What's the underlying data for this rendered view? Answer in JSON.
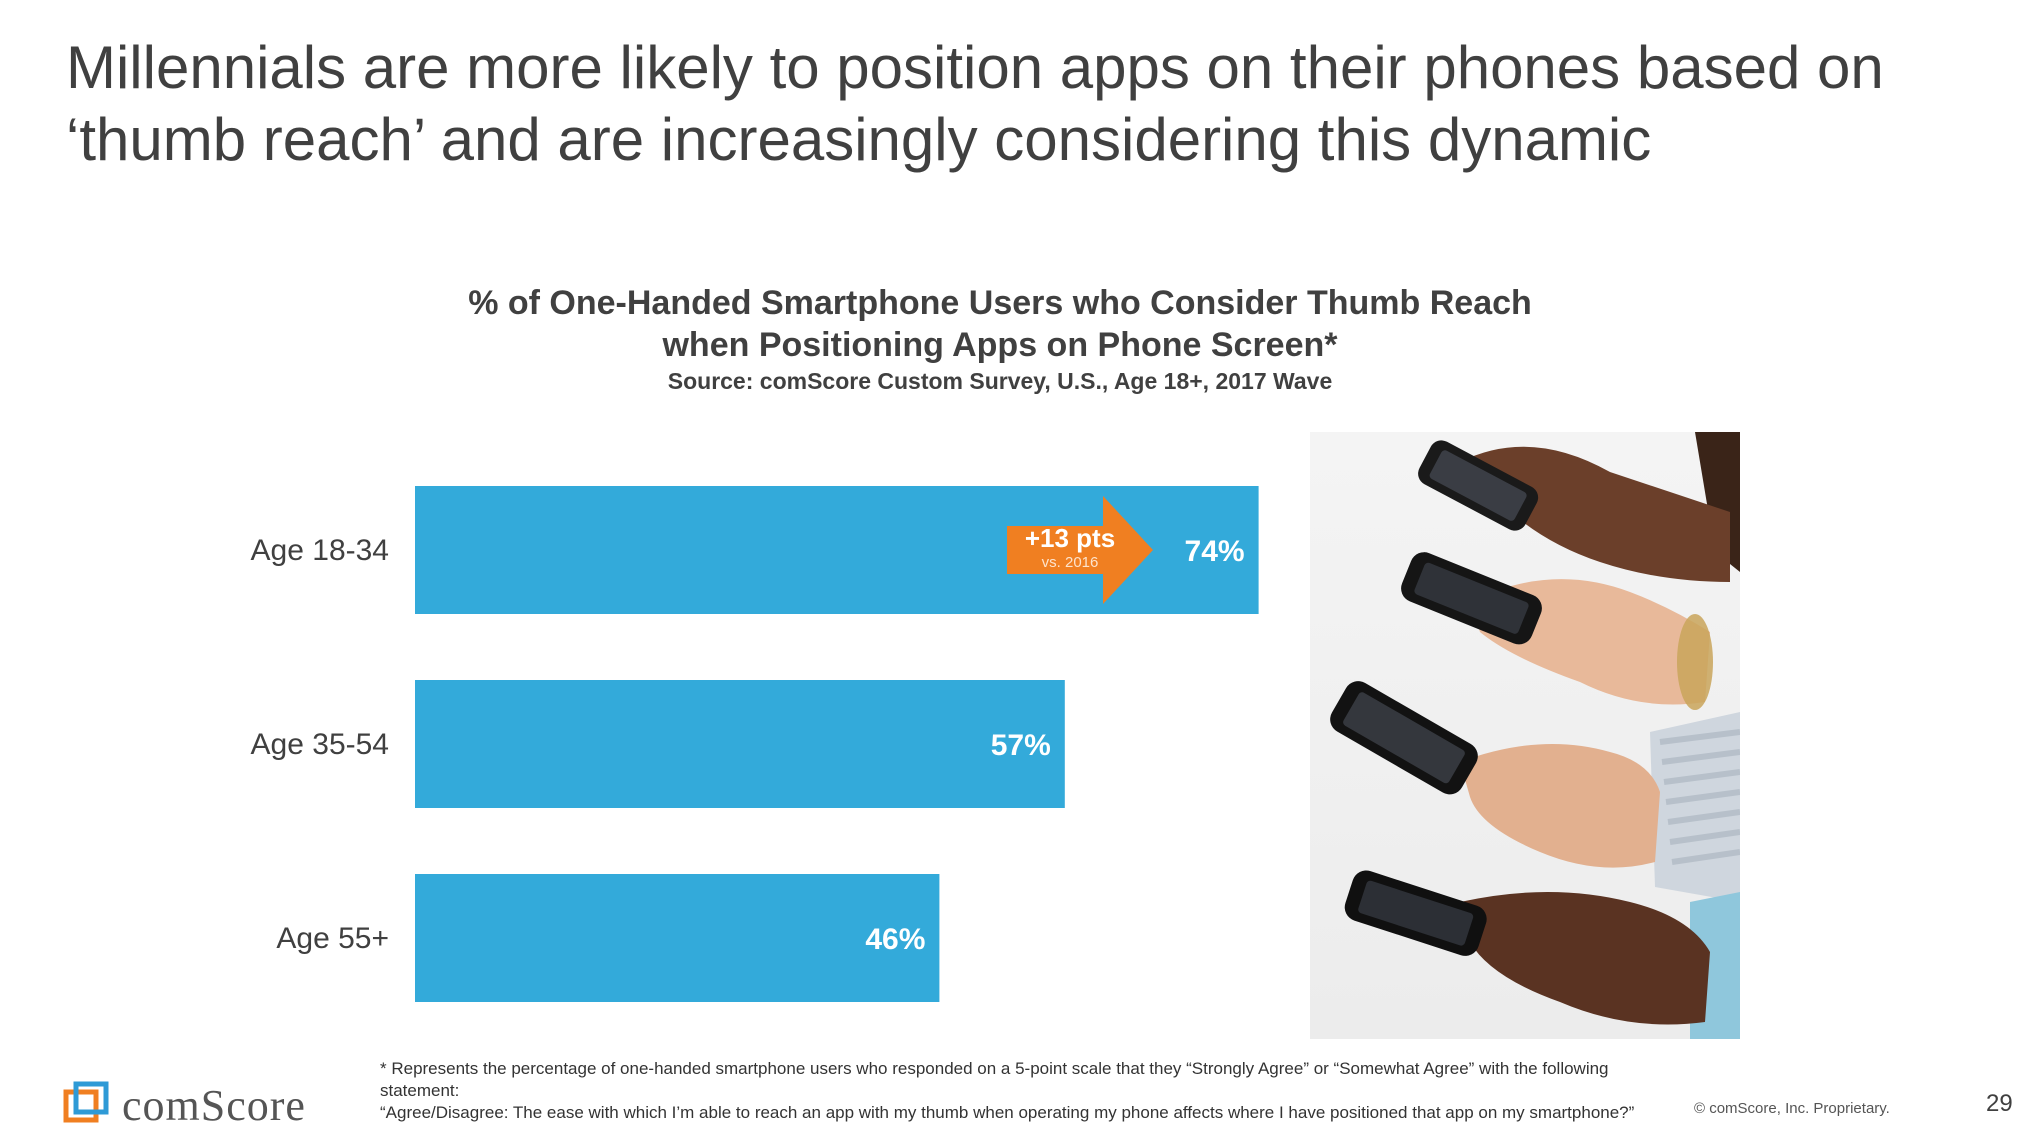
{
  "slide": {
    "title_line1": "Millennials are more likely to position apps on their phones based on",
    "title_line2": "‘thumb reach’ and are increasingly considering this dynamic",
    "page_number": "29",
    "copyright": "© comScore, Inc. Proprietary."
  },
  "chart_data": {
    "type": "bar",
    "orientation": "horizontal",
    "title_line1": "% of One-Handed Smartphone Users who Consider Thumb Reach",
    "title_line2": "when Positioning Apps on Phone Screen*",
    "subtitle": "Source: comScore Custom Survey, U.S., Age 18+, 2017 Wave",
    "categories": [
      "Age 18-34",
      "Age 35-54",
      "Age 55+"
    ],
    "values": [
      74,
      57,
      46
    ],
    "value_labels": [
      "74%",
      "57%",
      "46%"
    ],
    "unit": "%",
    "xlim": [
      0,
      100
    ],
    "grid": false,
    "bar_color": "#33AADA",
    "annotation": {
      "category": "Age 18-34",
      "text": "+13 pts",
      "subtext": "vs. 2016",
      "color": "#F07F21"
    }
  },
  "footnote": {
    "line1": "* Represents the percentage of one-handed smartphone users who responded on a 5-point scale that they “Strongly Agree” or “Somewhat Agree” with the following statement:",
    "line2": "“Agree/Disagree: The ease with which I’m able to reach an app with my thumb when operating my phone affects where I have positioned that app on my smartphone?”"
  },
  "logo": {
    "text": "comScore"
  },
  "photo": {
    "icon": "hands-holding-smartphones-photo"
  }
}
